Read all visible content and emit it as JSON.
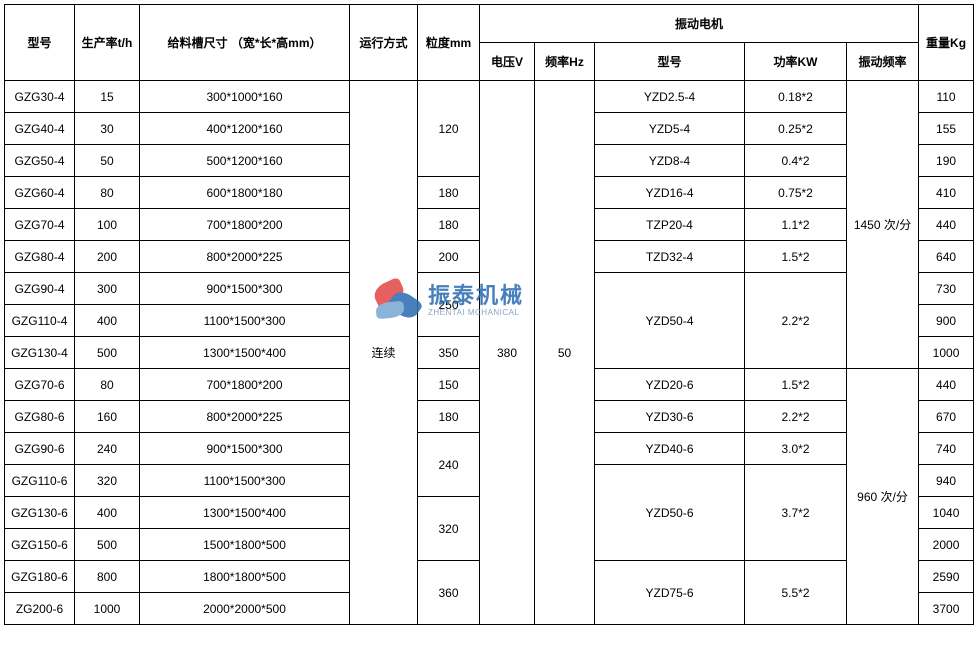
{
  "headers": {
    "model": "型号",
    "rate": "生产率t/h",
    "size": "给料槽尺寸 （宽*长*高mm）",
    "mode": "运行方式",
    "grain": "粒度mm",
    "motor_group": "振动电机",
    "volt": "电压V",
    "freq": "频率Hz",
    "motor_model": "型号",
    "power": "功率KW",
    "vib_freq": "振动频率",
    "weight": "重量Kg"
  },
  "spans": {
    "mode": "连续",
    "volt": "380",
    "freq": "50",
    "vfreq_a": "1450 次/分",
    "vfreq_b": "960 次/分",
    "mmodel_g1": "YZD50-4",
    "power_g1": "2.2*2",
    "mmodel_g2": "YZD50-6",
    "power_g2": "3.7*2",
    "mmodel_g3": "YZD75-6",
    "power_g3": "5.5*2"
  },
  "rows": [
    {
      "model": "GZG30-4",
      "rate": "15",
      "size": "300*1000*160",
      "grain_span": 3,
      "grain": "120",
      "mmodel": "YZD2.5-4",
      "power": "0.18*2",
      "weight": "110"
    },
    {
      "model": "GZG40-4",
      "rate": "30",
      "size": "400*1200*160",
      "mmodel": "YZD5-4",
      "power": "0.25*2",
      "weight": "155"
    },
    {
      "model": "GZG50-4",
      "rate": "50",
      "size": "500*1200*160",
      "mmodel": "YZD8-4",
      "power": "0.4*2",
      "weight": "190"
    },
    {
      "model": "GZG60-4",
      "rate": "80",
      "size": "600*1800*180",
      "grain_span": 1,
      "grain": "180",
      "mmodel": "YZD16-4",
      "power": "0.75*2",
      "weight": "410"
    },
    {
      "model": "GZG70-4",
      "rate": "100",
      "size": "700*1800*200",
      "grain_span": 1,
      "grain": "180",
      "mmodel": "TZP20-4",
      "power": "1.1*2",
      "weight": "440"
    },
    {
      "model": "GZG80-4",
      "rate": "200",
      "size": "800*2000*225",
      "grain_span": 1,
      "grain": "200",
      "mmodel": "TZD32-4",
      "power": "1.5*2",
      "weight": "640"
    },
    {
      "model": "GZG90-4",
      "rate": "300",
      "size": "900*1500*300",
      "grain_span": 2,
      "grain": "250",
      "weight": "730"
    },
    {
      "model": "GZG110-4",
      "rate": "400",
      "size": "1100*1500*300",
      "weight": "900"
    },
    {
      "model": "GZG130-4",
      "rate": "500",
      "size": "1300*1500*400",
      "grain_span": 1,
      "grain": "350",
      "weight": "1000"
    },
    {
      "model": "GZG70-6",
      "rate": "80",
      "size": "700*1800*200",
      "grain_span": 1,
      "grain": "150",
      "mmodel": "YZD20-6",
      "power": "1.5*2",
      "weight": "440"
    },
    {
      "model": "GZG80-6",
      "rate": "160",
      "size": "800*2000*225",
      "grain_span": 1,
      "grain": "180",
      "mmodel": "YZD30-6",
      "power": "2.2*2",
      "weight": "670"
    },
    {
      "model": "GZG90-6",
      "rate": "240",
      "size": "900*1500*300",
      "grain_span": 2,
      "grain": "240",
      "mmodel": "YZD40-6",
      "power": "3.0*2",
      "weight": "740"
    },
    {
      "model": "GZG110-6",
      "rate": "320",
      "size": "1100*1500*300",
      "weight": "940"
    },
    {
      "model": "GZG130-6",
      "rate": "400",
      "size": "1300*1500*400",
      "grain_span": 2,
      "grain": "320",
      "weight": "1040"
    },
    {
      "model": "GZG150-6",
      "rate": "500",
      "size": "1500*1800*500",
      "weight": "2000"
    },
    {
      "model": "GZG180-6",
      "rate": "800",
      "size": "1800*1800*500",
      "grain_span": 2,
      "grain": "360",
      "weight": "2590"
    },
    {
      "model": "ZG200-6",
      "rate": "1000",
      "size": "2000*2000*500",
      "weight": "3700"
    }
  ],
  "watermark": {
    "cn": "振泰机械",
    "en": "ZHENTAI MCHANICAL"
  }
}
